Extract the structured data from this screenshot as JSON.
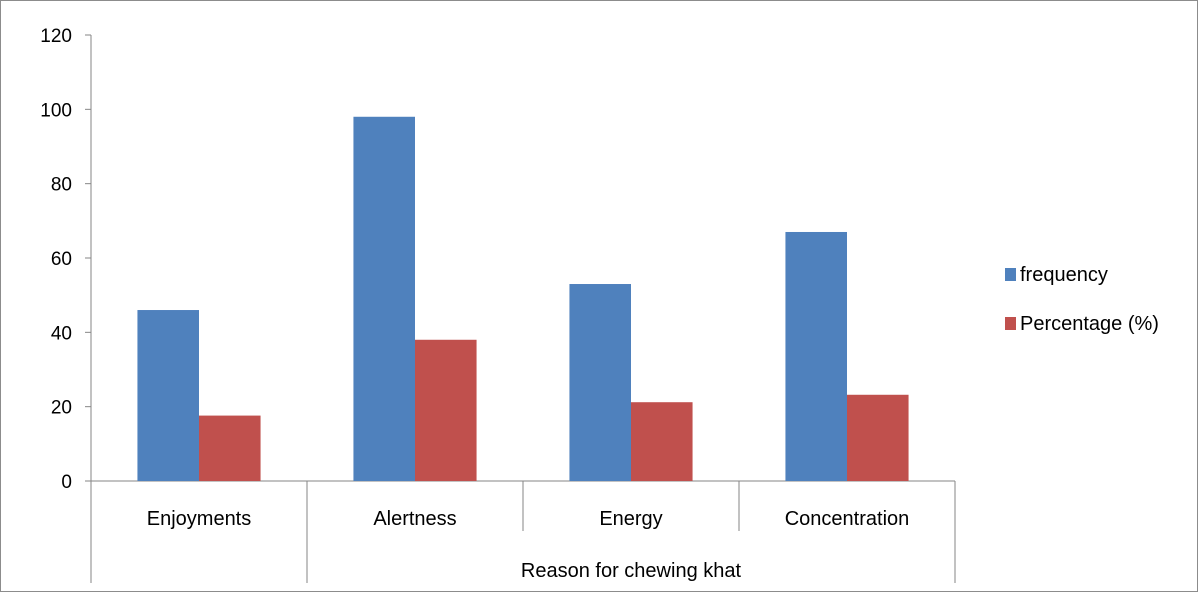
{
  "chart_data": {
    "type": "bar",
    "title": "",
    "xlabel": "Reason for chewing khat",
    "ylabel": "",
    "categories": [
      "Enjoyments",
      "Alertness",
      "Energy",
      "Concentration"
    ],
    "ylim": [
      0,
      120
    ],
    "yticks": [
      0,
      20,
      40,
      60,
      80,
      100,
      120
    ],
    "grid": false,
    "legend_position": "right",
    "series": [
      {
        "name": "frequency",
        "color": "#4F81BD",
        "values": [
          46,
          98,
          53,
          67
        ]
      },
      {
        "name": "Percentage (%)",
        "color": "#C0504D",
        "values": [
          17.6,
          38.0,
          21.2,
          23.2
        ]
      }
    ]
  }
}
